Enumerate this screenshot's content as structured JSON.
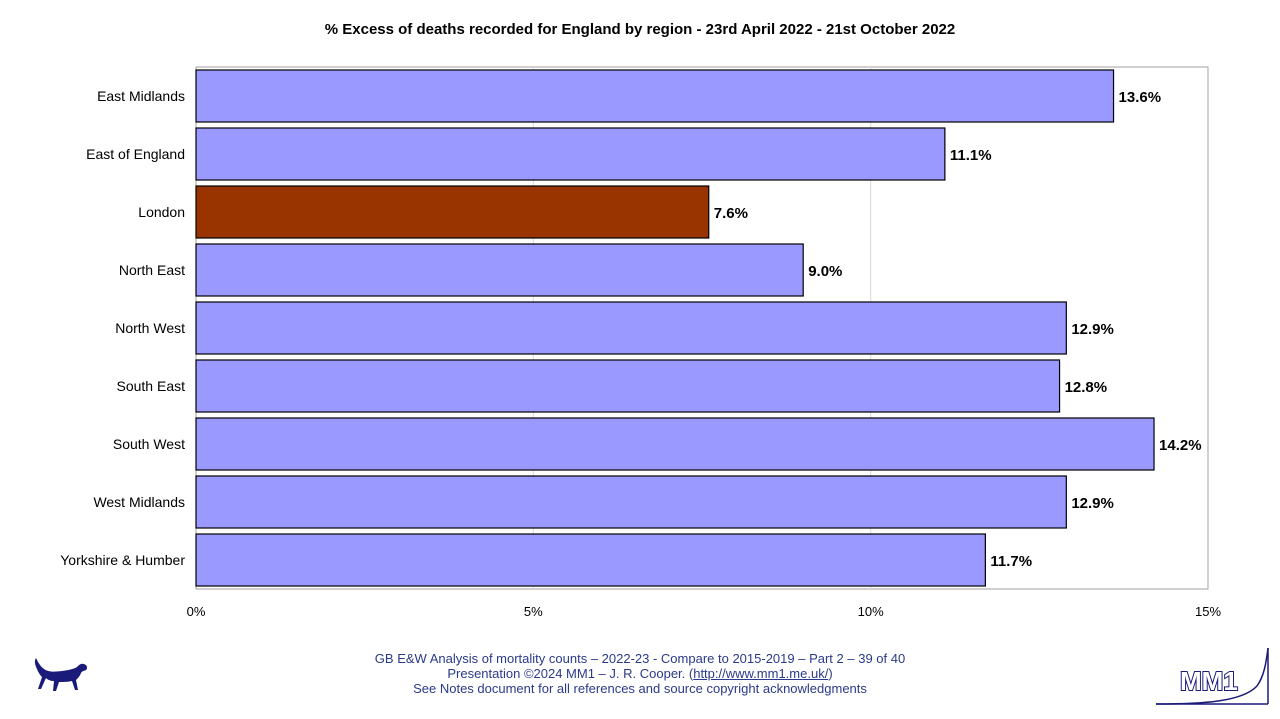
{
  "chart_data": {
    "type": "bar",
    "orientation": "horizontal",
    "title": "% Excess of deaths recorded for England by region - 23rd April 2022 - 21st October 2022",
    "categories": [
      "East Midlands",
      "East of  England",
      "London",
      "North East",
      "North West",
      "South East",
      "South West",
      "West Midlands",
      "Yorkshire & Humber"
    ],
    "values": [
      13.6,
      11.1,
      7.6,
      9.0,
      12.9,
      12.8,
      14.2,
      12.9,
      11.7
    ],
    "value_labels": [
      "13.6%",
      "11.1%",
      "7.6%",
      "9.0%",
      "12.9%",
      "12.8%",
      "14.2%",
      "12.9%",
      "11.7%"
    ],
    "highlight_category": "London",
    "colors": {
      "bar": "#9999ff",
      "highlight": "#993300",
      "gridline": "#d9d9d9",
      "border": "#000000"
    },
    "xlim": [
      0,
      15
    ],
    "xticks": [
      0,
      5,
      10,
      15
    ],
    "xtick_labels": [
      "0%",
      "5%",
      "10%",
      "15%"
    ],
    "grid": "vertical-major",
    "legend": "none"
  },
  "footer": {
    "line1": "GB E&W Analysis of mortality counts – 2022-23 - Compare to 2015-2019 – Part 2 – 39 of 40",
    "line2_prefix": "Presentation ©2024 MM1 – J. R. Cooper. (",
    "link": "http://www.mm1.me.uk/",
    "line2_suffix": ")",
    "line3": "See Notes document for all references and source copyright acknowledgments"
  },
  "logos": {
    "left": "dog-icon",
    "right": "MM1"
  }
}
